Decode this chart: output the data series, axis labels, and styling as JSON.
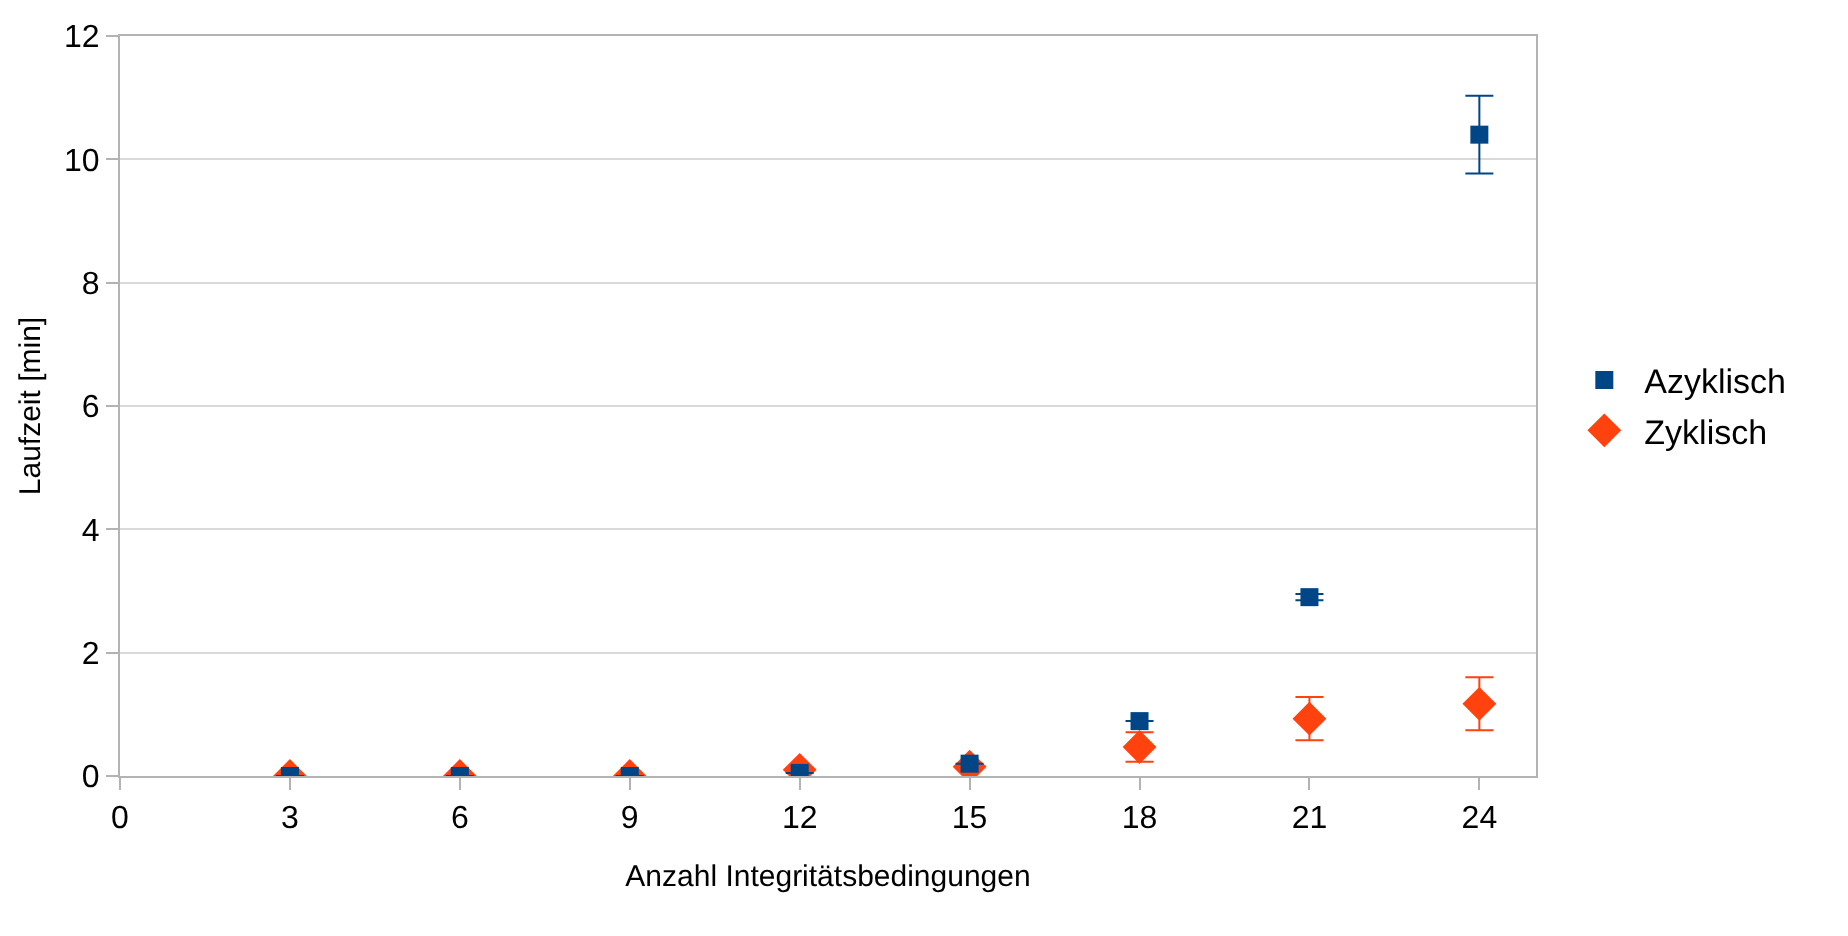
{
  "chart_data": {
    "type": "scatter",
    "xlabel": "Anzahl Integritätsbedingungen",
    "ylabel": "Laufzeit [min]",
    "x": [
      3,
      6,
      9,
      12,
      15,
      18,
      21,
      24
    ],
    "series": [
      {
        "name": "Azyklisch",
        "color": "#004586",
        "marker": "square",
        "values": [
          0,
          0,
          0,
          0.05,
          0.2,
          0.89,
          2.9,
          10.4
        ],
        "errors": [
          null,
          null,
          null,
          null,
          null,
          null,
          0.05,
          0.63
        ]
      },
      {
        "name": "Zyklisch",
        "color": "#ff420e",
        "marker": "diamond",
        "values": [
          0,
          0,
          0,
          0.1,
          0.15,
          0.47,
          0.93,
          1.17
        ],
        "errors": [
          null,
          null,
          null,
          null,
          null,
          0.24,
          0.35,
          0.43
        ]
      }
    ],
    "xlim": [
      0,
      25
    ],
    "xticks": [
      0,
      3,
      6,
      9,
      12,
      15,
      18,
      21,
      24
    ],
    "ylim": [
      0,
      12
    ],
    "yticks": [
      0,
      2,
      4,
      6,
      8,
      10,
      12
    ],
    "grid": "y",
    "legend": "right"
  }
}
